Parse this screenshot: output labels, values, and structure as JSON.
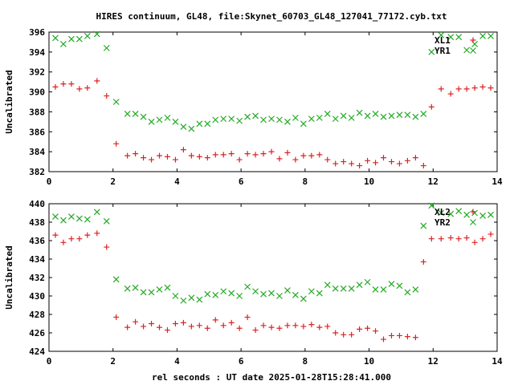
{
  "title": "HIRES continuum, GL48, file:Skynet_60703_GL48_127041_77172.cyb.txt",
  "xlabel": "rel seconds : UT date 2025-01-28T15:28:41.000",
  "colors": {
    "red": "#dd2222",
    "green": "#22aa22",
    "axis": "#000000"
  },
  "chart_data": [
    {
      "type": "scatter",
      "ylabel": "Uncalibrated",
      "xlim": [
        0,
        14
      ],
      "ylim": [
        382,
        396
      ],
      "xticks": [
        0,
        2,
        4,
        6,
        8,
        10,
        12,
        14
      ],
      "yticks": [
        382,
        384,
        386,
        388,
        390,
        392,
        394,
        396
      ],
      "legend": "top-right",
      "series": [
        {
          "name": "XL1",
          "color": "#dd2222",
          "marker": "plus",
          "x": [
            0.2,
            0.45,
            0.7,
            0.95,
            1.2,
            1.5,
            1.8,
            2.1,
            2.45,
            2.7,
            2.95,
            3.2,
            3.45,
            3.7,
            3.95,
            4.2,
            4.45,
            4.7,
            4.95,
            5.2,
            5.45,
            5.7,
            5.95,
            6.2,
            6.45,
            6.7,
            6.95,
            7.2,
            7.45,
            7.7,
            7.95,
            8.2,
            8.45,
            8.7,
            8.95,
            9.2,
            9.45,
            9.7,
            9.95,
            10.2,
            10.45,
            10.7,
            10.95,
            11.2,
            11.45,
            11.7,
            11.95,
            12.25,
            12.55,
            12.8,
            13.05,
            13.3,
            13.55,
            13.8
          ],
          "y": [
            390.5,
            390.8,
            390.8,
            390.3,
            390.4,
            391.1,
            389.6,
            384.8,
            383.6,
            383.8,
            383.4,
            383.2,
            383.6,
            383.5,
            383.2,
            384.2,
            383.6,
            383.5,
            383.4,
            383.7,
            383.7,
            383.8,
            383.2,
            383.8,
            383.7,
            383.8,
            384.0,
            383.3,
            383.9,
            383.2,
            383.6,
            383.6,
            383.7,
            383.2,
            382.8,
            383.0,
            382.8,
            382.6,
            383.1,
            382.9,
            383.4,
            383.0,
            382.8,
            383.1,
            383.4,
            382.6,
            388.5,
            390.3,
            389.8,
            390.3,
            390.3,
            390.4,
            390.5,
            390.4
          ]
        },
        {
          "name": "YR1",
          "color": "#22aa22",
          "marker": "x",
          "x": [
            0.2,
            0.45,
            0.7,
            0.95,
            1.2,
            1.5,
            1.8,
            2.1,
            2.45,
            2.7,
            2.95,
            3.2,
            3.45,
            3.7,
            3.95,
            4.2,
            4.45,
            4.7,
            4.95,
            5.2,
            5.45,
            5.7,
            5.95,
            6.2,
            6.45,
            6.7,
            6.95,
            7.2,
            7.45,
            7.7,
            7.95,
            8.2,
            8.45,
            8.7,
            8.95,
            9.2,
            9.45,
            9.7,
            9.95,
            10.2,
            10.45,
            10.7,
            10.95,
            11.2,
            11.45,
            11.7,
            11.95,
            12.25,
            12.55,
            12.8,
            13.05,
            13.3,
            13.55,
            13.8
          ],
          "y": [
            395.4,
            394.8,
            395.3,
            395.3,
            395.6,
            395.8,
            394.4,
            389.0,
            387.8,
            387.8,
            387.5,
            387.0,
            387.2,
            387.4,
            387.0,
            386.5,
            386.3,
            386.8,
            386.8,
            387.2,
            387.3,
            387.3,
            387.1,
            387.5,
            387.6,
            387.2,
            387.3,
            387.2,
            387.0,
            387.4,
            386.8,
            387.3,
            387.4,
            387.8,
            387.3,
            387.6,
            387.4,
            387.9,
            387.6,
            387.8,
            387.5,
            387.6,
            387.7,
            387.7,
            387.5,
            387.8,
            394.0,
            395.7,
            395.5,
            395.5,
            394.2,
            394.8,
            395.6,
            395.6
          ]
        }
      ]
    },
    {
      "type": "scatter",
      "ylabel": "Uncalibrated",
      "xlim": [
        0,
        14
      ],
      "ylim": [
        424,
        440
      ],
      "xticks": [
        0,
        2,
        4,
        6,
        8,
        10,
        12,
        14
      ],
      "yticks": [
        424,
        426,
        428,
        430,
        432,
        434,
        436,
        438,
        440
      ],
      "legend": "top-right",
      "series": [
        {
          "name": "XL2",
          "color": "#dd2222",
          "marker": "plus",
          "x": [
            0.2,
            0.45,
            0.7,
            0.95,
            1.2,
            1.5,
            1.8,
            2.1,
            2.45,
            2.7,
            2.95,
            3.2,
            3.45,
            3.7,
            3.95,
            4.2,
            4.45,
            4.7,
            4.95,
            5.2,
            5.45,
            5.7,
            5.95,
            6.2,
            6.45,
            6.7,
            6.95,
            7.2,
            7.45,
            7.7,
            7.95,
            8.2,
            8.45,
            8.7,
            8.95,
            9.2,
            9.45,
            9.7,
            9.95,
            10.2,
            10.45,
            10.7,
            10.95,
            11.2,
            11.45,
            11.7,
            11.95,
            12.25,
            12.55,
            12.8,
            13.05,
            13.3,
            13.55,
            13.8
          ],
          "y": [
            436.6,
            435.8,
            436.2,
            436.2,
            436.6,
            436.8,
            435.3,
            427.7,
            426.6,
            427.2,
            426.7,
            427.0,
            426.6,
            426.3,
            427.0,
            427.1,
            426.7,
            426.8,
            426.5,
            427.4,
            426.8,
            427.1,
            426.5,
            427.7,
            426.3,
            426.8,
            426.6,
            426.5,
            426.8,
            426.8,
            426.7,
            426.9,
            426.6,
            426.7,
            426.0,
            425.8,
            425.8,
            426.4,
            426.5,
            426.2,
            425.3,
            425.7,
            425.7,
            425.6,
            425.5,
            433.7,
            436.2,
            436.2,
            436.3,
            436.2,
            436.3,
            435.8,
            436.2,
            436.7
          ]
        },
        {
          "name": "YR2",
          "color": "#22aa22",
          "marker": "x",
          "x": [
            0.2,
            0.45,
            0.7,
            0.95,
            1.2,
            1.5,
            1.8,
            2.1,
            2.45,
            2.7,
            2.95,
            3.2,
            3.45,
            3.7,
            3.95,
            4.2,
            4.45,
            4.7,
            4.95,
            5.2,
            5.45,
            5.7,
            5.95,
            6.2,
            6.45,
            6.7,
            6.95,
            7.2,
            7.45,
            7.7,
            7.95,
            8.2,
            8.45,
            8.7,
            8.95,
            9.2,
            9.45,
            9.7,
            9.95,
            10.2,
            10.45,
            10.7,
            10.95,
            11.2,
            11.45,
            11.7,
            11.95,
            12.25,
            12.55,
            12.8,
            13.05,
            13.3,
            13.55,
            13.8
          ],
          "y": [
            438.6,
            438.2,
            438.6,
            438.4,
            438.3,
            439.1,
            438.1,
            431.8,
            430.8,
            430.9,
            430.4,
            430.4,
            430.7,
            430.9,
            430.0,
            429.5,
            429.8,
            429.6,
            430.2,
            430.1,
            430.5,
            430.3,
            430.0,
            431.0,
            430.5,
            430.2,
            430.3,
            430.0,
            430.6,
            430.1,
            429.7,
            430.5,
            430.3,
            431.2,
            430.8,
            430.8,
            430.8,
            431.2,
            431.5,
            430.7,
            430.7,
            431.3,
            431.1,
            430.4,
            430.7,
            437.6,
            439.8,
            439.0,
            438.9,
            439.2,
            438.8,
            439.0,
            438.7,
            438.8
          ]
        }
      ]
    }
  ]
}
